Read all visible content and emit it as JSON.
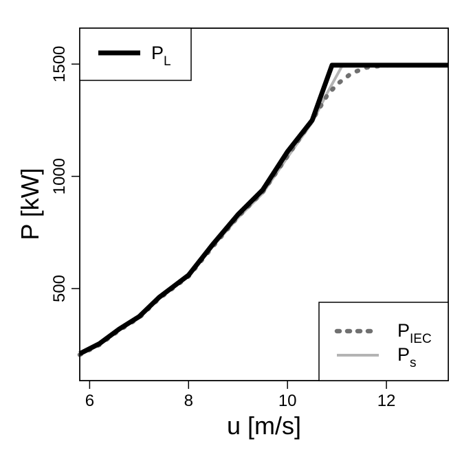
{
  "chart_data": {
    "type": "line",
    "title": "",
    "xlabel": "u [m/s]",
    "ylabel": "P [kW]",
    "xlim": [
      5.8,
      13.25
    ],
    "ylim": [
      90,
      1660
    ],
    "x_ticks": [
      6,
      8,
      10,
      12
    ],
    "y_ticks": [
      500,
      1000,
      1500
    ],
    "x_tick_labels": [
      "6",
      "8",
      "10",
      "12"
    ],
    "y_tick_labels": [
      "500",
      "1000",
      "1500"
    ],
    "grid": false,
    "series": [
      {
        "name": "P",
        "subscript": "L",
        "color": "#000000",
        "style": "solid-thick",
        "legend": "top-left",
        "x": [
          5.8,
          6.2,
          6.6,
          7.0,
          7.4,
          8.0,
          8.5,
          9.0,
          9.5,
          10.0,
          10.5,
          10.9,
          11.3,
          13.25
        ],
        "y": [
          210,
          255,
          320,
          375,
          460,
          560,
          700,
          830,
          940,
          1110,
          1250,
          1495,
          1495,
          1495
        ]
      },
      {
        "name": "P",
        "subscript": "IEC",
        "color": "#707070",
        "style": "dashed",
        "legend": "bottom-right",
        "x": [
          5.8,
          6.2,
          6.6,
          7.0,
          7.4,
          8.0,
          8.5,
          9.0,
          9.5,
          10.0,
          10.5,
          10.8,
          11.0,
          11.3,
          11.6,
          12.0,
          13.25
        ],
        "y": [
          205,
          250,
          315,
          370,
          455,
          555,
          690,
          820,
          930,
          1090,
          1250,
          1360,
          1410,
          1460,
          1485,
          1495,
          1495
        ]
      },
      {
        "name": "P",
        "subscript": "s",
        "color": "#b4b4b4",
        "style": "solid",
        "legend": "bottom-right",
        "x": [
          5.8,
          6.2,
          6.6,
          7.0,
          7.4,
          8.0,
          8.5,
          9.0,
          9.5,
          10.0,
          10.5,
          10.8,
          11.1,
          11.3,
          13.25
        ],
        "y": [
          205,
          250,
          315,
          370,
          455,
          555,
          690,
          815,
          925,
          1085,
          1240,
          1370,
          1490,
          1495,
          1495
        ]
      }
    ]
  }
}
